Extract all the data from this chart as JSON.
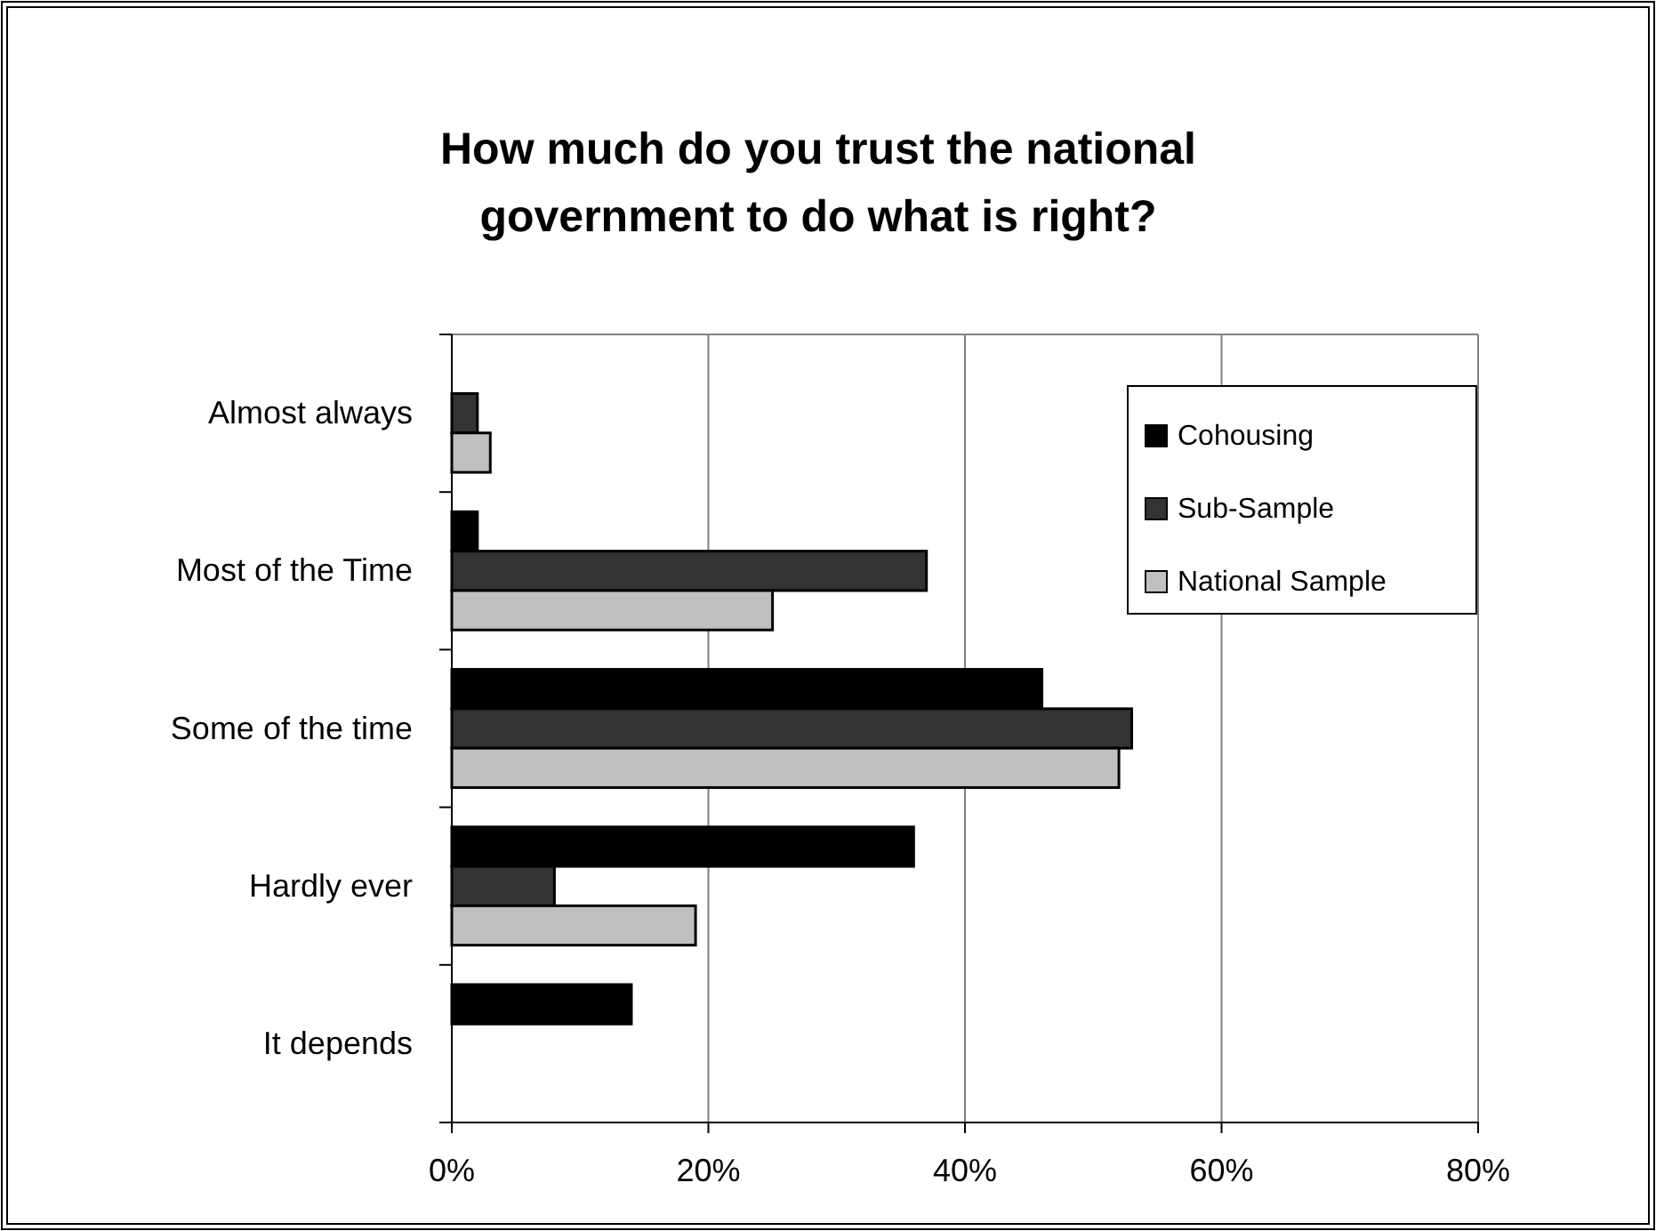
{
  "chart_data": {
    "type": "bar",
    "orientation": "horizontal",
    "title": "How much do you trust the national government to do what is right?",
    "categories": [
      "Almost always",
      "Most of the Time",
      "Some of the time",
      "Hardly ever",
      "It depends"
    ],
    "series": [
      {
        "name": "Cohousing",
        "color": "#000000",
        "values": [
          null,
          2,
          46,
          36,
          14
        ]
      },
      {
        "name": "Sub-Sample",
        "color": "#333333",
        "values": [
          2,
          37,
          53,
          8,
          null
        ]
      },
      {
        "name": "National Sample",
        "color": "#c0c0c0",
        "values": [
          3,
          25,
          52,
          19,
          null
        ]
      }
    ],
    "xlim": [
      0,
      80
    ],
    "xticks": [
      {
        "value": 0,
        "label": "0%"
      },
      {
        "value": 20,
        "label": "20%"
      },
      {
        "value": 40,
        "label": "40%"
      },
      {
        "value": 60,
        "label": "60%"
      },
      {
        "value": 80,
        "label": "80%"
      }
    ],
    "grid": "x",
    "legend": "top right"
  }
}
